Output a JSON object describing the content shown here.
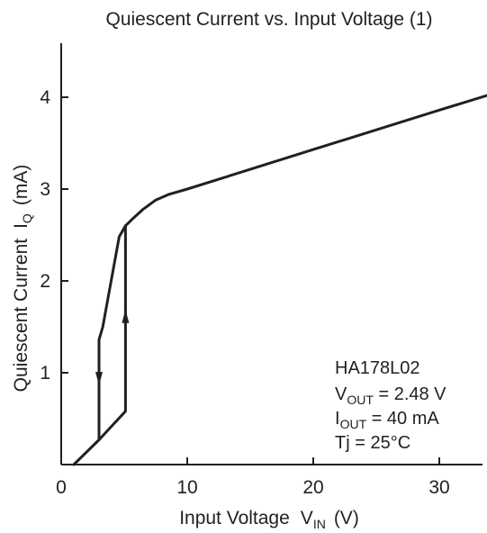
{
  "chart_data": {
    "type": "line",
    "title": "Quiescent Current vs. Input Voltage (1)",
    "xlabel": "Input Voltage",
    "xlabel_symbol": "V",
    "xlabel_sub": "IN",
    "xlabel_unit": "(V)",
    "ylabel": "Quiescent Current",
    "ylabel_symbol": "I",
    "ylabel_sub": "Q",
    "ylabel_unit": "(mA)",
    "xlim": [
      0,
      35
    ],
    "ylim": [
      0,
      4.5
    ],
    "xticks": [
      0,
      10,
      20,
      30
    ],
    "yticks": [
      1,
      2,
      3,
      4
    ],
    "grid": false,
    "series": [
      {
        "values_xy": [
          [
            1.0,
            0.0
          ],
          [
            3.0,
            0.27
          ],
          [
            5.1,
            0.58
          ],
          [
            5.1,
            2.6
          ],
          [
            5.7,
            2.68
          ],
          [
            6.5,
            2.78
          ],
          [
            7.5,
            2.88
          ],
          [
            8.5,
            2.94
          ],
          [
            10.0,
            3.0
          ],
          [
            20.0,
            3.43
          ],
          [
            30.0,
            3.86
          ],
          [
            35.0,
            4.07
          ]
        ]
      },
      {
        "values_xy": [
          [
            5.1,
            2.6
          ],
          [
            4.6,
            2.48
          ],
          [
            3.3,
            1.5
          ],
          [
            3.0,
            1.36
          ],
          [
            3.0,
            0.27
          ]
        ]
      }
    ],
    "arrows": [
      {
        "x": 5.1,
        "y": 1.6,
        "direction": "up"
      },
      {
        "x": 3.0,
        "y": 0.95,
        "direction": "down"
      }
    ],
    "annotation": {
      "device": "HA178L02",
      "vout_symbol": "V",
      "vout_sub": "OUT",
      "vout_value": " = 2.48 V",
      "iout_symbol": "I",
      "iout_sub": "OUT",
      "iout_value": " = 40 mA",
      "tj": "Tj = 25°C"
    }
  }
}
